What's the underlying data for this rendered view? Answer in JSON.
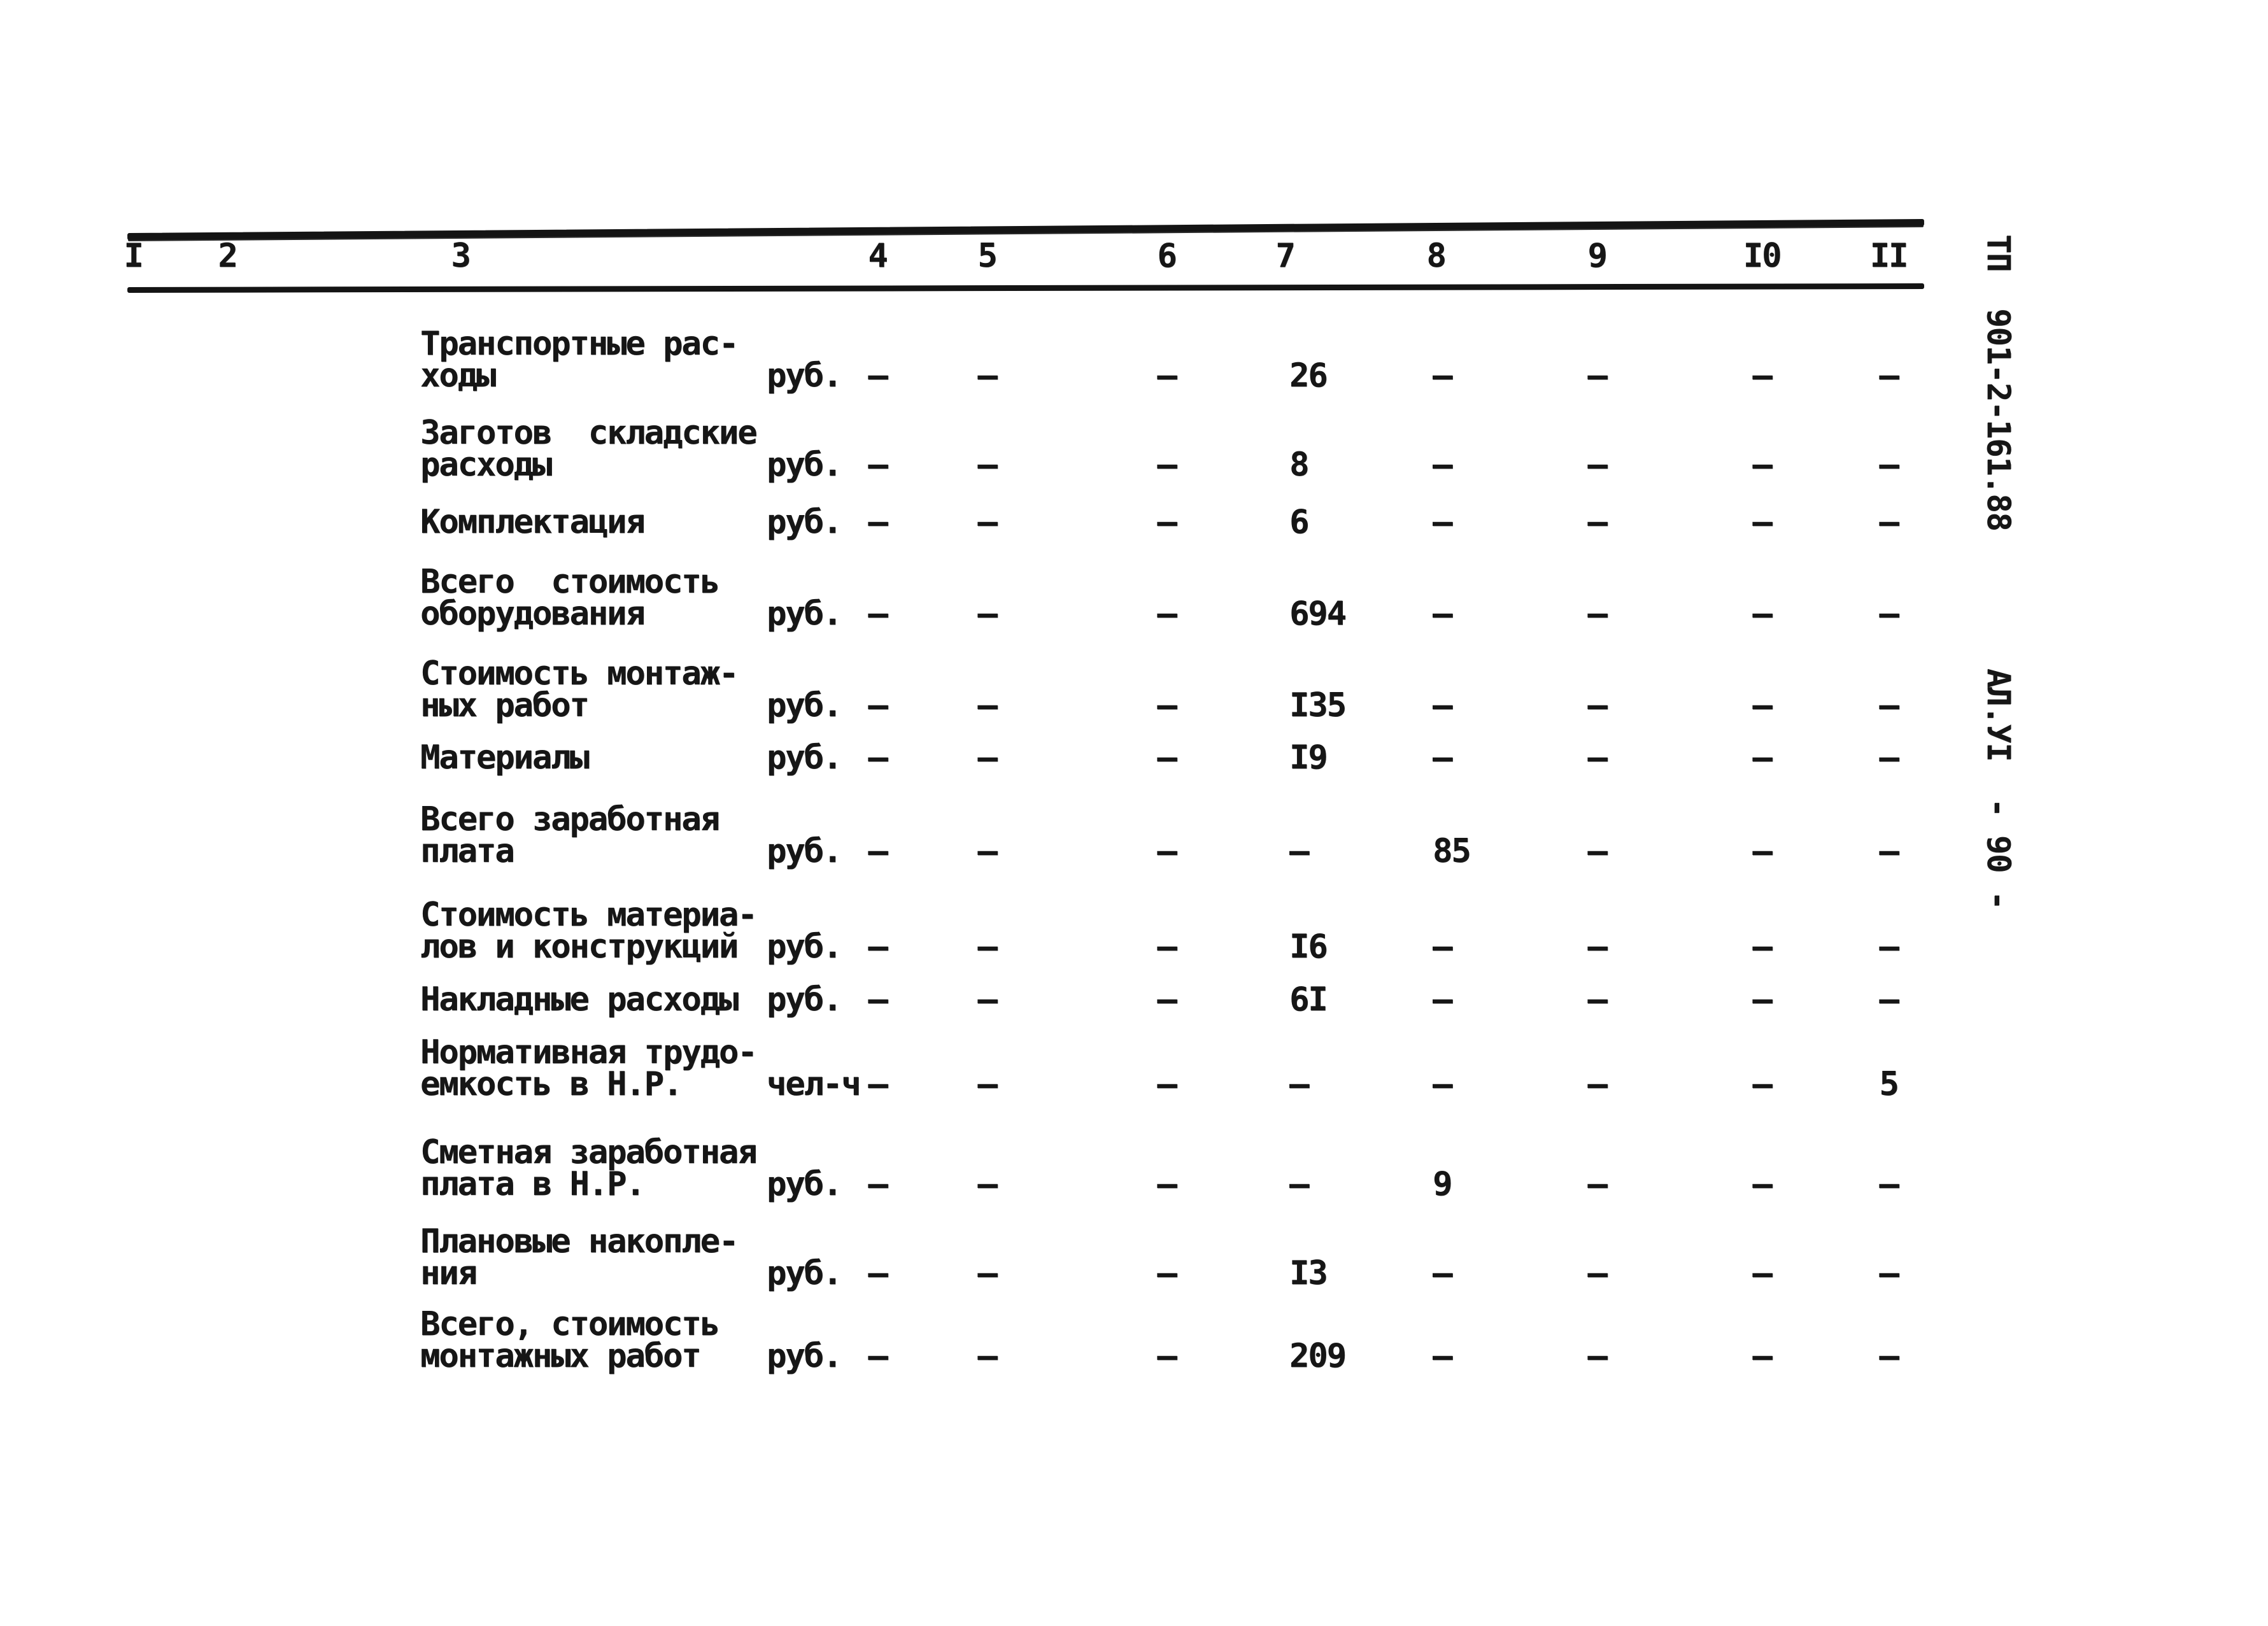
{
  "document": {
    "side_notes": {
      "project_code": "ТП  901-2-161.88",
      "album_page": "АЛ.УІ  - 90 -"
    },
    "table": {
      "column_headers": [
        "I",
        "2",
        "3",
        "4",
        "5",
        "6",
        "7",
        "8",
        "9",
        "I0",
        "II"
      ],
      "rows": [
        {
          "label_lines": [
            "Транспортные рас-",
            "ходы"
          ],
          "unit": "руб.",
          "c4": "—",
          "c5": "—",
          "c6": "—",
          "c7": "26",
          "c8": "—",
          "c9": "—",
          "c10": "—",
          "c11": "—"
        },
        {
          "label_lines": [
            "Заготов  складские",
            "расходы"
          ],
          "unit": "руб.",
          "c4": "—",
          "c5": "—",
          "c6": "—",
          "c7": "8",
          "c8": "—",
          "c9": "—",
          "c10": "—",
          "c11": "—"
        },
        {
          "label_lines": [
            "Комплектация"
          ],
          "unit": "руб.",
          "c4": "—",
          "c5": "—",
          "c6": "—",
          "c7": "6",
          "c8": "—",
          "c9": "—",
          "c10": "—",
          "c11": "—"
        },
        {
          "label_lines": [
            "Всего  стоимость",
            "оборудования"
          ],
          "unit": "руб.",
          "c4": "—",
          "c5": "—",
          "c6": "—",
          "c7": "694",
          "c8": "—",
          "c9": "—",
          "c10": "—",
          "c11": "—"
        },
        {
          "label_lines": [
            "Стоимость монтаж-",
            "ных работ"
          ],
          "unit": "руб.",
          "c4": "—",
          "c5": "—",
          "c6": "—",
          "c7": "I35",
          "c8": "—",
          "c9": "—",
          "c10": "—",
          "c11": "—"
        },
        {
          "label_lines": [
            "Материалы"
          ],
          "unit": "руб.",
          "c4": "—",
          "c5": "—",
          "c6": "—",
          "c7": "I9",
          "c8": "—",
          "c9": "—",
          "c10": "—",
          "c11": "—"
        },
        {
          "label_lines": [
            "Всего заработная",
            "плата"
          ],
          "unit": "руб.",
          "c4": "—",
          "c5": "—",
          "c6": "—",
          "c7": "—",
          "c8": "85",
          "c9": "—",
          "c10": "—",
          "c11": "—"
        },
        {
          "label_lines": [
            "Стоимость материа-",
            "лов и конструкций"
          ],
          "unit": "руб.",
          "c4": "—",
          "c5": "—",
          "c6": "—",
          "c7": "I6",
          "c8": "—",
          "c9": "—",
          "c10": "—",
          "c11": "—"
        },
        {
          "label_lines": [
            "Накладные расходы"
          ],
          "unit": "руб.",
          "c4": "—",
          "c5": "—",
          "c6": "—",
          "c7": "6I",
          "c8": "—",
          "c9": "—",
          "c10": "—",
          "c11": "—"
        },
        {
          "label_lines": [
            "Нормативная трудо-",
            "емкость в Н.Р."
          ],
          "unit": "чел-ч",
          "c4": "—",
          "c5": "—",
          "c6": "—",
          "c7": "—",
          "c8": "—",
          "c9": "—",
          "c10": "—",
          "c11": "5"
        },
        {
          "label_lines": [
            "Сметная заработная",
            "плата в Н.Р."
          ],
          "unit": "руб.",
          "c4": "—",
          "c5": "—",
          "c6": "—",
          "c7": "—",
          "c8": "9",
          "c9": "—",
          "c10": "—",
          "c11": "—"
        },
        {
          "label_lines": [
            "Плановые накопле-",
            "ния"
          ],
          "unit": "руб.",
          "c4": "—",
          "c5": "—",
          "c6": "—",
          "c7": "I3",
          "c8": "—",
          "c9": "—",
          "c10": "—",
          "c11": "—"
        },
        {
          "label_lines": [
            "Всего, стоимость",
            "монтажных работ"
          ],
          "unit": "руб.",
          "c4": "—",
          "c5": "—",
          "c6": "—",
          "c7": "209",
          "c8": "—",
          "c9": "—",
          "c10": "—",
          "c11": "—"
        }
      ]
    }
  }
}
